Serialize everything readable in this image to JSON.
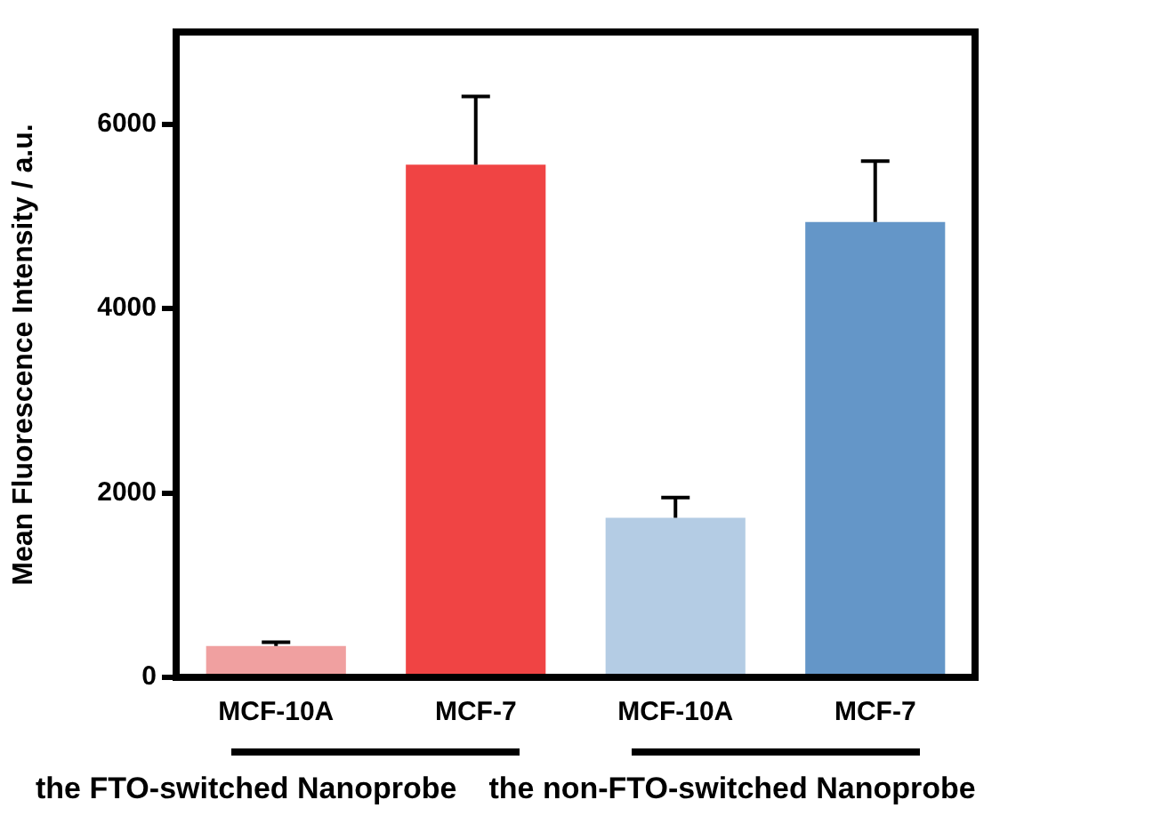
{
  "chart_data": {
    "type": "bar",
    "ylabel": "Mean Fluorescence Intensity / a.u.",
    "categories": [
      "MCF-10A",
      "MCF-7",
      "MCF-10A",
      "MCF-7"
    ],
    "values": [
      340,
      5560,
      1730,
      4940
    ],
    "colors": [
      "#f0a0a0",
      "#f04444",
      "#b4cce4",
      "#6496c8"
    ],
    "errors": [
      [
        340,
        380
      ],
      [
        5560,
        6300
      ],
      [
        1730,
        1950
      ],
      [
        4940,
        5600
      ]
    ],
    "ylim": [
      0,
      7000
    ],
    "yticks": [
      0,
      2000,
      4000,
      6000
    ],
    "grid": false,
    "legend": false,
    "annotations": [
      "the FTO-switched Nanoprobe",
      "the non-FTO-switched Nanoprobe"
    ]
  }
}
